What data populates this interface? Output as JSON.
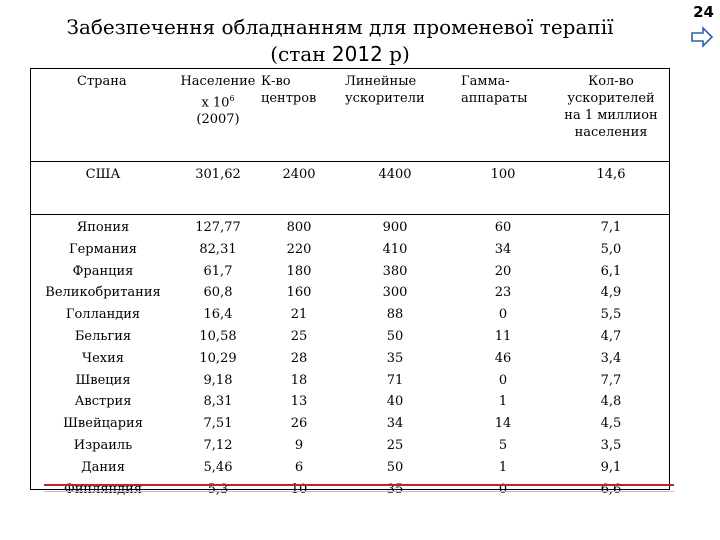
{
  "page": {
    "number": "24",
    "title_line1": "Забезпечення обладнанням для променевої терапії",
    "title_line2_prefix": "(стан ",
    "title_line2_year": "2012",
    "title_line2_suffix": " р)",
    "nav_icon": "arrow-right-icon"
  },
  "table": {
    "headers": {
      "country": "Страна",
      "population_1": "Население",
      "population_2": "х 10",
      "population_sup": "6",
      "population_3": "(2007)",
      "centers_1": "К-во",
      "centers_2": "центров",
      "linacs_1": "Линейные",
      "linacs_2": "ускорители",
      "gamma_1": "Гамма-",
      "gamma_2": "аппараты",
      "permillion_1": "Кол-во",
      "permillion_2": "ускорителей",
      "permillion_3": "на 1 миллион",
      "permillion_4": "населения"
    },
    "rows": [
      {
        "country": "США",
        "population": "301,62",
        "centers": "2400",
        "linacs": "4400",
        "gamma": "100",
        "per_million": "14,6"
      },
      {
        "country": "Япония",
        "population": "127,77",
        "centers": "800",
        "linacs": "900",
        "gamma": "60",
        "per_million": "7,1"
      },
      {
        "country": "Германия",
        "population": "82,31",
        "centers": "220",
        "linacs": "410",
        "gamma": "34",
        "per_million": "5,0"
      },
      {
        "country": "Франция",
        "population": "61,7",
        "centers": "180",
        "linacs": "380",
        "gamma": "20",
        "per_million": "6,1"
      },
      {
        "country": "Великобритания",
        "population": "60,8",
        "centers": "160",
        "linacs": "300",
        "gamma": "23",
        "per_million": "4,9"
      },
      {
        "country": "Голландия",
        "population": "16,4",
        "centers": "21",
        "linacs": "88",
        "gamma": "0",
        "per_million": "5,5"
      },
      {
        "country": "Бельгия",
        "population": "10,58",
        "centers": "25",
        "linacs": "50",
        "gamma": "11",
        "per_million": "4,7"
      },
      {
        "country": "Чехия",
        "population": "10,29",
        "centers": "28",
        "linacs": "35",
        "gamma": "46",
        "per_million": "3,4"
      },
      {
        "country": "Швеция",
        "population": "9,18",
        "centers": "18",
        "linacs": "71",
        "gamma": "0",
        "per_million": "7,7"
      },
      {
        "country": "Австрия",
        "population": "8,31",
        "centers": "13",
        "linacs": "40",
        "gamma": "1",
        "per_million": "4,8"
      },
      {
        "country": "Швейцария",
        "population": "7,51",
        "centers": "26",
        "linacs": "34",
        "gamma": "14",
        "per_million": "4,5"
      },
      {
        "country": "Израиль",
        "population": "7,12",
        "centers": "9",
        "linacs": "25",
        "gamma": "5",
        "per_million": "3,5"
      },
      {
        "country": "Дания",
        "population": "5,46",
        "centers": "6",
        "linacs": "50",
        "gamma": "1",
        "per_million": "9,1"
      },
      {
        "country": "Финляндия",
        "population": "5,3",
        "centers": "10",
        "linacs": "35",
        "gamma": "0",
        "per_million": "6,6"
      }
    ]
  }
}
